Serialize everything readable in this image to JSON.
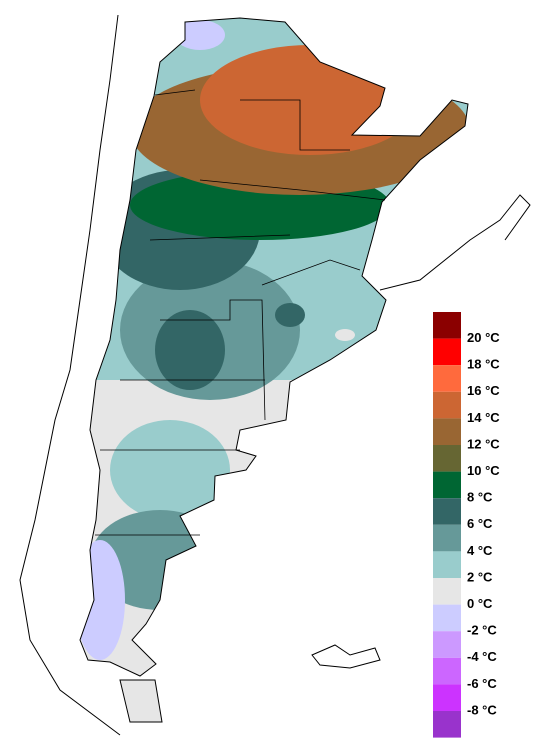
{
  "legend": {
    "labels": [
      "20 °C",
      "18 °C",
      "16 °C",
      "14 °C",
      "12 °C",
      "10 °C",
      "8 °C",
      "6 °C",
      "4 °C",
      "2 °C",
      "0 °C",
      "-2 °C",
      "-4 °C",
      "-6 °C",
      "-8 °C"
    ],
    "colors": [
      "#8b0000",
      "#ff0000",
      "#ff6a3d",
      "#cc6633",
      "#996633",
      "#666633",
      "#006633",
      "#336666",
      "#669999",
      "#99cccc",
      "#e6e6e6",
      "#ccccff",
      "#cc99ff",
      "#cc66ff",
      "#cc33ff",
      "#9933cc"
    ]
  }
}
